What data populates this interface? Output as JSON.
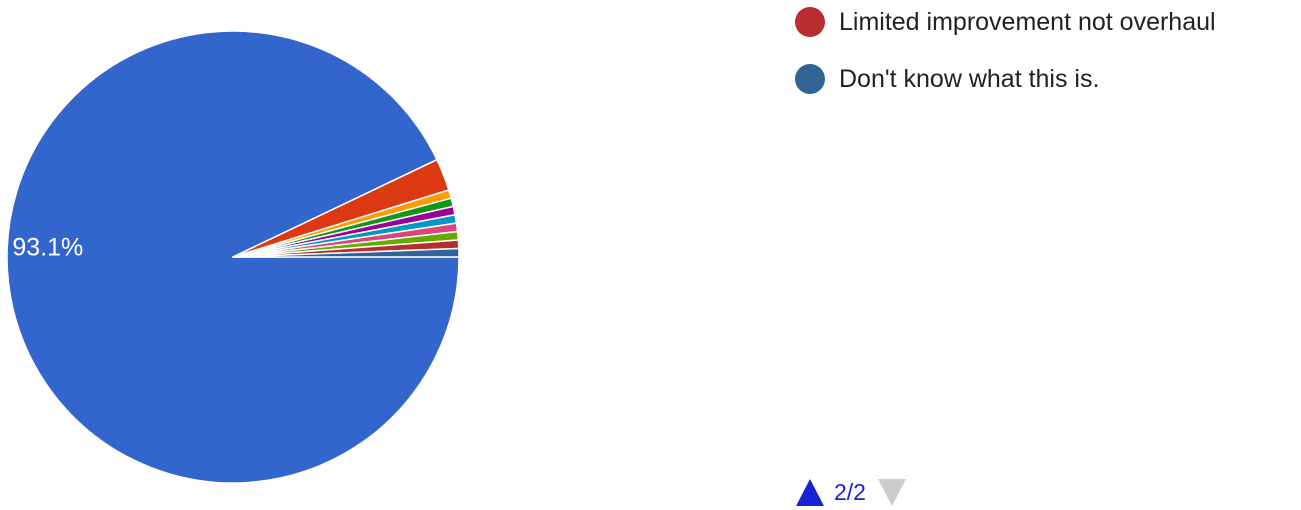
{
  "chart_data": {
    "type": "pie",
    "title": "",
    "slices": [
      {
        "value": 93.1,
        "color": "#3366cc",
        "label": "93.1%"
      },
      {
        "value": 2.3,
        "color": "#dc3912",
        "label": ""
      },
      {
        "value": 0.6,
        "color": "#ff9900",
        "label": ""
      },
      {
        "value": 0.6,
        "color": "#109618",
        "label": ""
      },
      {
        "value": 0.6,
        "color": "#990099",
        "label": ""
      },
      {
        "value": 0.6,
        "color": "#0099c6",
        "label": ""
      },
      {
        "value": 0.6,
        "color": "#dd4477",
        "label": ""
      },
      {
        "value": 0.6,
        "color": "#66aa00",
        "label": ""
      },
      {
        "value": 0.6,
        "color": "#b82e2e",
        "label": ""
      },
      {
        "value": 0.6,
        "color": "#316395",
        "label": ""
      }
    ],
    "legend": {
      "placement": "right",
      "items": [
        {
          "label": "Limited improvement not overhaul",
          "color": "#b82e2e"
        },
        {
          "label": "Don't know what this is.",
          "color": "#316395"
        }
      ]
    },
    "pager": {
      "text": "2/2",
      "up_color": "#1a22d6",
      "down_color": "#cccccc"
    }
  }
}
